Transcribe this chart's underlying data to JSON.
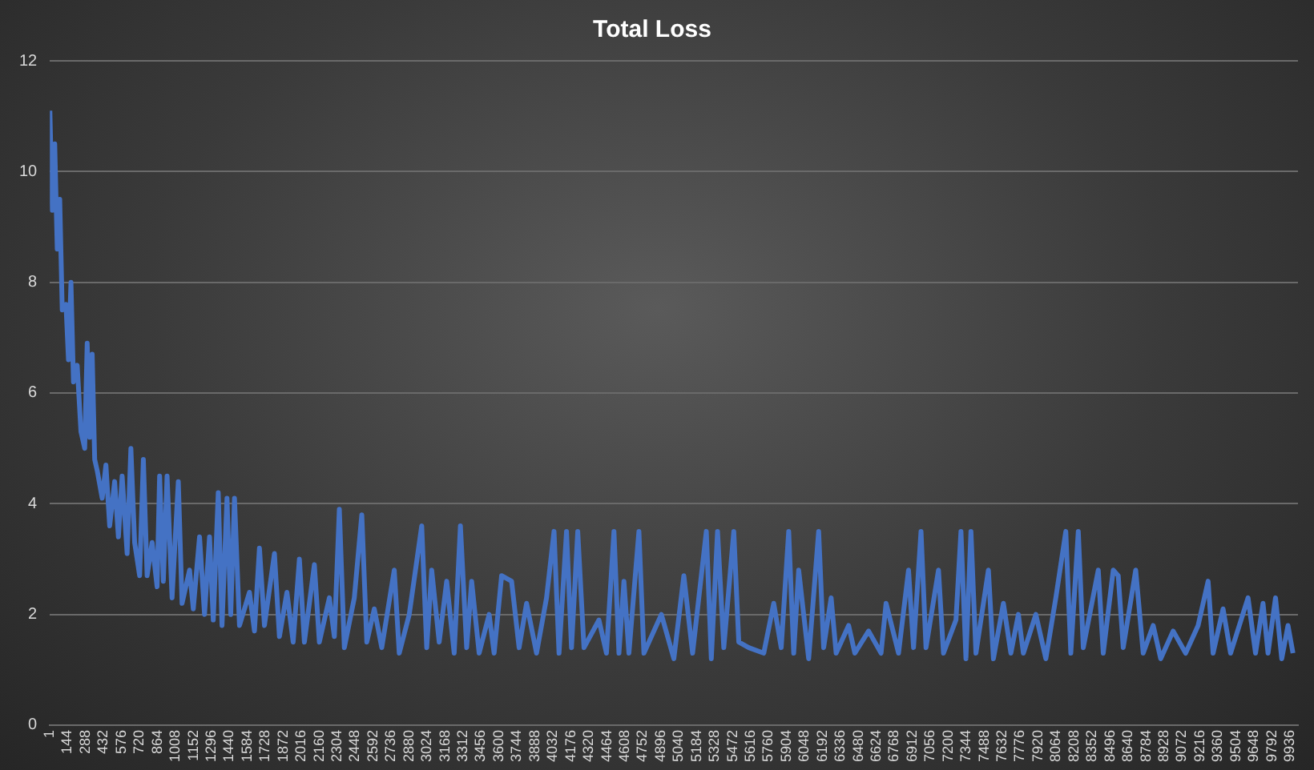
{
  "chart_data": {
    "type": "line",
    "title": "Total Loss",
    "grid": "y",
    "marker": "none",
    "line_style": "solid",
    "xlim": [
      1,
      10000
    ],
    "xticks": [
      1,
      144,
      288,
      432,
      576,
      720,
      864,
      1008,
      1152,
      1296,
      1440,
      1584,
      1728,
      1872,
      2016,
      2160,
      2304,
      2448,
      2592,
      2736,
      2880,
      3024,
      3168,
      3312,
      3456,
      3600,
      3744,
      3888,
      4032,
      4176,
      4320,
      4464,
      4608,
      4752,
      4896,
      5040,
      5184,
      5328,
      5472,
      5616,
      5760,
      5904,
      6048,
      6192,
      6336,
      6480,
      6624,
      6768,
      6912,
      7056,
      7200,
      7344,
      7488,
      7632,
      7776,
      7920,
      8064,
      8208,
      8352,
      8496,
      8640,
      8784,
      8928,
      9072,
      9216,
      9360,
      9504,
      9648,
      9792,
      9936
    ],
    "ylim": [
      0,
      12
    ],
    "yticks": [
      0,
      2,
      4,
      6,
      8,
      10,
      12
    ],
    "x": [
      1,
      20,
      40,
      60,
      80,
      100,
      130,
      150,
      170,
      190,
      220,
      250,
      280,
      300,
      320,
      340,
      360,
      380,
      420,
      450,
      480,
      520,
      550,
      580,
      620,
      650,
      680,
      720,
      750,
      780,
      820,
      860,
      880,
      910,
      940,
      980,
      1030,
      1060,
      1120,
      1150,
      1200,
      1240,
      1280,
      1310,
      1350,
      1380,
      1420,
      1450,
      1480,
      1520,
      1600,
      1640,
      1680,
      1720,
      1800,
      1840,
      1900,
      1950,
      2000,
      2040,
      2120,
      2160,
      2240,
      2280,
      2320,
      2360,
      2440,
      2500,
      2540,
      2600,
      2660,
      2760,
      2800,
      2880,
      2980,
      3020,
      3060,
      3120,
      3180,
      3240,
      3290,
      3340,
      3380,
      3440,
      3520,
      3560,
      3620,
      3700,
      3760,
      3820,
      3900,
      3980,
      4040,
      4080,
      4140,
      4180,
      4230,
      4280,
      4400,
      4460,
      4520,
      4560,
      4600,
      4640,
      4720,
      4760,
      4900,
      5000,
      5080,
      5150,
      5260,
      5300,
      5350,
      5400,
      5480,
      5520,
      5600,
      5720,
      5800,
      5860,
      5920,
      5960,
      6000,
      6080,
      6160,
      6200,
      6260,
      6300,
      6400,
      6450,
      6560,
      6660,
      6700,
      6800,
      6880,
      6920,
      6980,
      7020,
      7120,
      7160,
      7260,
      7300,
      7340,
      7380,
      7420,
      7520,
      7560,
      7640,
      7700,
      7760,
      7800,
      7900,
      7980,
      8060,
      8140,
      8180,
      8240,
      8280,
      8400,
      8440,
      8520,
      8560,
      8600,
      8700,
      8760,
      8840,
      8900,
      9000,
      9100,
      9200,
      9280,
      9320,
      9400,
      9460,
      9600,
      9660,
      9720,
      9760,
      9820,
      9870,
      9920,
      9960
    ],
    "series": [
      {
        "color": "#4472c4",
        "values": [
          11.1,
          9.3,
          10.5,
          8.6,
          9.5,
          7.5,
          7.6,
          6.6,
          8.0,
          6.2,
          6.5,
          5.3,
          5.0,
          6.9,
          5.2,
          6.7,
          4.8,
          4.6,
          4.1,
          4.7,
          3.6,
          4.4,
          3.4,
          4.5,
          3.1,
          5.0,
          3.3,
          2.7,
          4.8,
          2.7,
          3.3,
          2.5,
          4.5,
          2.6,
          4.5,
          2.3,
          4.4,
          2.2,
          2.8,
          2.1,
          3.4,
          2.0,
          3.4,
          1.9,
          4.2,
          1.8,
          4.1,
          2.0,
          4.1,
          1.8,
          2.4,
          1.7,
          3.2,
          1.8,
          3.1,
          1.6,
          2.4,
          1.5,
          3.0,
          1.5,
          2.9,
          1.5,
          2.3,
          1.6,
          3.9,
          1.4,
          2.3,
          3.8,
          1.5,
          2.1,
          1.4,
          2.8,
          1.3,
          2.0,
          3.6,
          1.4,
          2.8,
          1.5,
          2.6,
          1.3,
          3.6,
          1.4,
          2.6,
          1.3,
          2.0,
          1.3,
          2.7,
          2.6,
          1.4,
          2.2,
          1.3,
          2.3,
          3.5,
          1.3,
          3.5,
          1.4,
          3.5,
          1.4,
          1.9,
          1.3,
          3.5,
          1.3,
          2.6,
          1.3,
          3.5,
          1.3,
          2.0,
          1.2,
          2.7,
          1.3,
          3.5,
          1.2,
          3.5,
          1.4,
          3.5,
          1.5,
          1.4,
          1.3,
          2.2,
          1.4,
          3.5,
          1.3,
          2.8,
          1.2,
          3.5,
          1.4,
          2.3,
          1.3,
          1.8,
          1.3,
          1.7,
          1.3,
          2.2,
          1.3,
          2.8,
          1.4,
          3.5,
          1.4,
          2.8,
          1.3,
          1.9,
          3.5,
          1.2,
          3.5,
          1.3,
          2.8,
          1.2,
          2.2,
          1.3,
          2.0,
          1.3,
          2.0,
          1.2,
          2.3,
          3.5,
          1.3,
          3.5,
          1.4,
          2.8,
          1.3,
          2.8,
          2.7,
          1.4,
          2.8,
          1.3,
          1.8,
          1.2,
          1.7,
          1.3,
          1.8,
          2.6,
          1.3,
          2.1,
          1.3,
          2.3,
          1.3,
          2.2,
          1.3,
          2.3,
          1.2,
          1.8,
          1.3
        ]
      }
    ]
  }
}
